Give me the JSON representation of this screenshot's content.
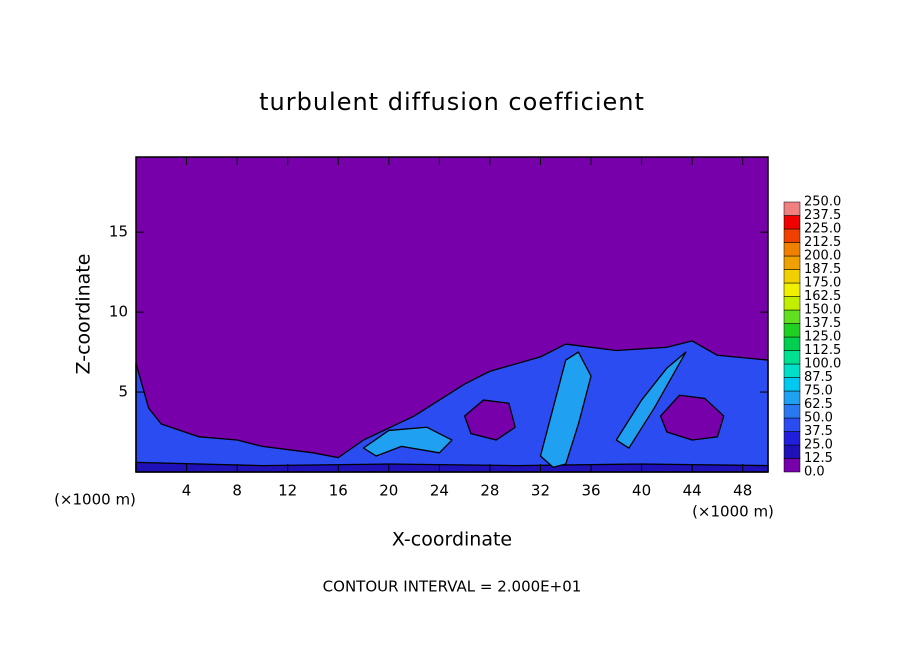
{
  "chart_data": {
    "type": "contour",
    "title": "turbulent diffusion coefficient",
    "xlabel": "X-coordinate",
    "ylabel": "Z-coordinate",
    "x_unit_label": "(×1000 m)",
    "y_unit_label": "(×1000 m)",
    "footer": "CONTOUR INTERVAL = 2.000E+01",
    "xlim": [
      0,
      50
    ],
    "ylim": [
      0,
      19.7
    ],
    "xticks": [
      4,
      8,
      12,
      16,
      20,
      24,
      28,
      32,
      36,
      40,
      44,
      48
    ],
    "yticks": [
      5,
      10,
      15
    ],
    "colorbar": {
      "levels": [
        {
          "value": 0,
          "label": "0.0"
        },
        {
          "value": 12.5,
          "label": "12.5"
        },
        {
          "value": 25,
          "label": "25.0"
        },
        {
          "value": 37.5,
          "label": "37.5"
        },
        {
          "value": 50,
          "label": "50.0"
        },
        {
          "value": 62.5,
          "label": "62.5"
        },
        {
          "value": 75,
          "label": "75.0"
        },
        {
          "value": 87.5,
          "label": "87.5"
        },
        {
          "value": 100,
          "label": "100.0"
        },
        {
          "value": 112.5,
          "label": "112.5"
        },
        {
          "value": 125,
          "label": "125.0"
        },
        {
          "value": 137.5,
          "label": "137.5"
        },
        {
          "value": 150,
          "label": "150.0"
        },
        {
          "value": 162.5,
          "label": "162.5"
        },
        {
          "value": 175,
          "label": "175.0"
        },
        {
          "value": 187.5,
          "label": "187.5"
        },
        {
          "value": 200,
          "label": "200.0"
        },
        {
          "value": 212.5,
          "label": "212.5"
        },
        {
          "value": 225,
          "label": "225.0"
        },
        {
          "value": 237.5,
          "label": "237.5"
        },
        {
          "value": 250,
          "label": "250.0"
        }
      ],
      "colors": [
        "#7800aa",
        "#2010b8",
        "#2020dc",
        "#2a4cf0",
        "#2a78f0",
        "#20a0f0",
        "#00c8f0",
        "#00e0c8",
        "#00e090",
        "#00d050",
        "#20d020",
        "#60e020",
        "#c0f000",
        "#f0f000",
        "#f0d000",
        "#f0a000",
        "#f08000",
        "#f04000",
        "#f00000",
        "#f08080"
      ]
    },
    "regions": [
      {
        "value": 37.5,
        "x": [
          0,
          1,
          2,
          5,
          8,
          10,
          14,
          16,
          18,
          22,
          26,
          28,
          32,
          34,
          38,
          42,
          44,
          46,
          50,
          50,
          0
        ],
        "z": [
          6.8,
          4,
          3,
          2.2,
          2,
          1.6,
          1.2,
          0.9,
          2,
          3.5,
          5.5,
          6.3,
          7.2,
          8,
          7.6,
          7.8,
          8.2,
          7.3,
          7,
          0,
          0
        ]
      },
      {
        "value": 12.5,
        "x": [
          0,
          10,
          20,
          30,
          40,
          50,
          50,
          0
        ],
        "z": [
          0.6,
          0.4,
          0.5,
          0.4,
          0.5,
          0.4,
          0,
          0
        ]
      },
      {
        "value": 62.5,
        "x": [
          32,
          33,
          34,
          35,
          36,
          35,
          34,
          33
        ],
        "z": [
          1,
          4,
          7,
          7.5,
          6,
          3,
          0.5,
          0.3
        ]
      },
      {
        "value": 62.5,
        "x": [
          38,
          40,
          42,
          43.5,
          43,
          41,
          39
        ],
        "z": [
          2,
          4.5,
          6.5,
          7.5,
          6.8,
          4,
          1.5
        ]
      },
      {
        "value": 62.5,
        "x": [
          18,
          20,
          23,
          25,
          24,
          21,
          19
        ],
        "z": [
          1.5,
          2.6,
          2.8,
          2,
          1.2,
          1.6,
          1
        ]
      },
      {
        "value": 0,
        "x": [
          41.5,
          43,
          45,
          46.5,
          46,
          44,
          42
        ],
        "z": [
          3.5,
          4.8,
          4.6,
          3.5,
          2.2,
          2,
          2.5
        ]
      },
      {
        "value": 0,
        "x": [
          26,
          27.5,
          29.5,
          30,
          28.5,
          26.5
        ],
        "z": [
          3.5,
          4.5,
          4.3,
          2.8,
          2,
          2.4
        ]
      }
    ]
  }
}
